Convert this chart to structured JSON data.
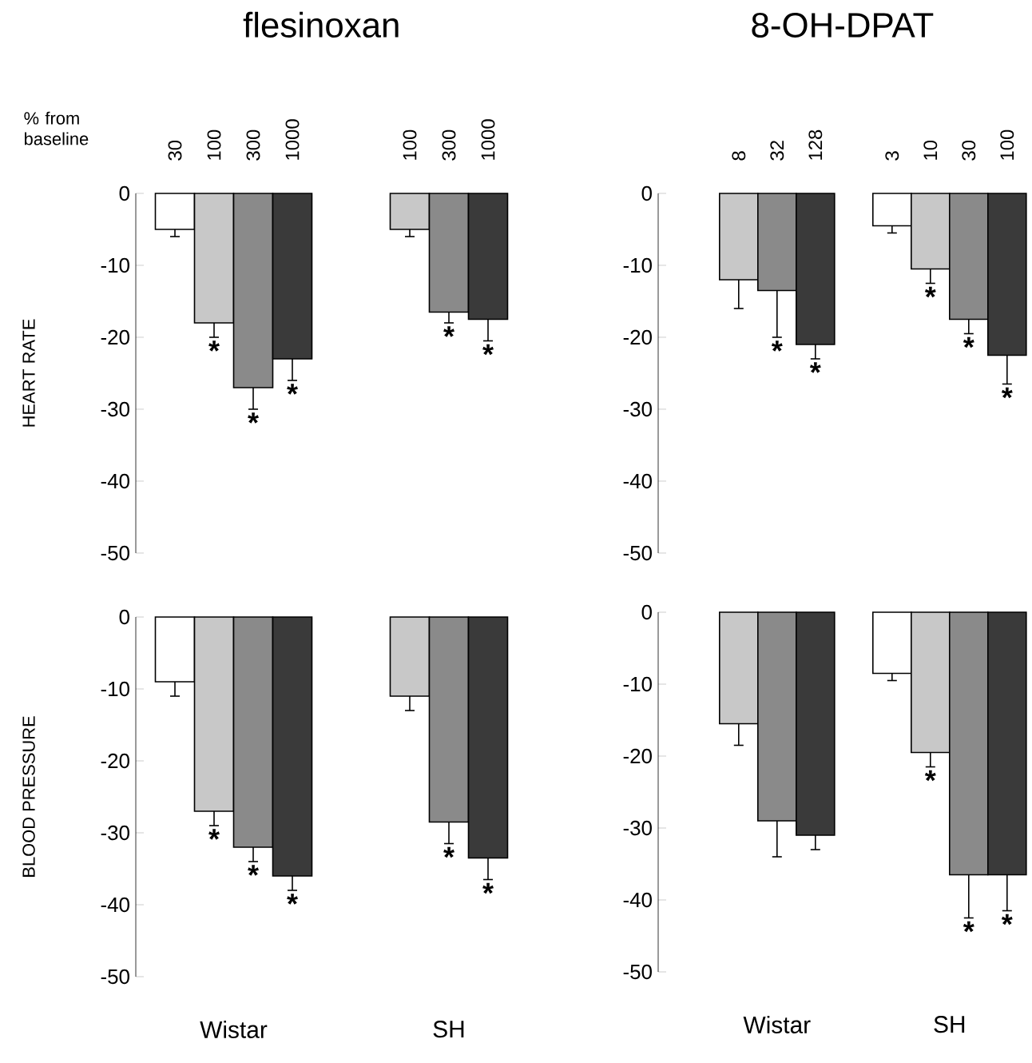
{
  "chart_data": [
    {
      "type": "bar",
      "title": "flesinoxan",
      "ylabel": "HEART RATE",
      "annotations": [
        "% from baseline"
      ],
      "categories": [
        "30",
        "100",
        "300",
        "1000",
        null,
        null,
        "100",
        "300",
        "1000"
      ],
      "values": [
        -5,
        -18,
        -27,
        -23,
        null,
        null,
        -5,
        -16.5,
        -17.5
      ],
      "errors": [
        [
          -6,
          -5
        ],
        [
          -20,
          -18
        ],
        [
          -30,
          -27
        ],
        [
          -26,
          -23
        ],
        null,
        null,
        [
          -6,
          -5
        ],
        [
          -18,
          -16.5
        ],
        [
          -20.5,
          -17.5
        ]
      ],
      "value_labels": [
        null,
        "*",
        "*",
        "*",
        null,
        null,
        null,
        "*",
        "*"
      ],
      "colors": [
        "#ffffff",
        "#c8c8c8",
        "#8a8a8a",
        "#3a3a3a",
        null,
        null,
        "#c8c8c8",
        "#8a8a8a",
        "#3a3a3a"
      ],
      "ylim": [
        -50,
        0
      ],
      "yticks": [
        0,
        -10,
        -20,
        -30,
        -40,
        -50
      ]
    },
    {
      "type": "bar",
      "title": "8-OH-DPAT",
      "categories": [
        "8",
        "32",
        "128",
        null,
        "3",
        "10",
        "30",
        "100"
      ],
      "values": [
        -12,
        -13.5,
        -21,
        null,
        -4.5,
        -10.5,
        -17.5,
        -22.5
      ],
      "errors": [
        [
          -16,
          -12
        ],
        [
          -20,
          -13.5
        ],
        [
          -23,
          -21
        ],
        null,
        [
          -5.5,
          -4.5
        ],
        [
          -12.5,
          -10.5
        ],
        [
          -19.5,
          -17.5
        ],
        [
          -26.5,
          -22.5
        ]
      ],
      "value_labels": [
        null,
        "*",
        "*",
        null,
        null,
        "*",
        "*",
        "*"
      ],
      "colors": [
        "#c8c8c8",
        "#8a8a8a",
        "#3a3a3a",
        null,
        "#ffffff",
        "#c8c8c8",
        "#8a8a8a",
        "#3a3a3a"
      ],
      "ylim": [
        -50,
        0
      ],
      "yticks": [
        0,
        -10,
        -20,
        -30,
        -40,
        -50
      ]
    },
    {
      "type": "bar",
      "ylabel": "BLOOD PRESSURE",
      "annotations": [
        "Wistar",
        "SH"
      ],
      "tick_labels": "y",
      "categories": [
        "30",
        "100",
        "300",
        "1000",
        null,
        null,
        "100",
        "300",
        "1000"
      ],
      "values": [
        -9,
        -27,
        -32,
        -36,
        null,
        null,
        -11,
        -28.5,
        -33.5
      ],
      "errors": [
        [
          -11,
          -9
        ],
        [
          -29,
          -27
        ],
        [
          -34,
          -32
        ],
        [
          -38,
          -36
        ],
        null,
        null,
        [
          -13,
          -11
        ],
        [
          -31.5,
          -28.5
        ],
        [
          -36.5,
          -33.5
        ]
      ],
      "value_labels": [
        null,
        "*",
        "*",
        "*",
        null,
        null,
        null,
        "*",
        "*"
      ],
      "colors": [
        "#ffffff",
        "#c8c8c8",
        "#8a8a8a",
        "#3a3a3a",
        null,
        null,
        "#c8c8c8",
        "#8a8a8a",
        "#3a3a3a"
      ],
      "ylim": [
        -50,
        0
      ],
      "yticks": [
        0,
        -10,
        -20,
        -30,
        -40,
        -50
      ]
    },
    {
      "type": "bar",
      "annotations": [
        "Wistar",
        "SH"
      ],
      "tick_labels": "y",
      "categories": [
        "8",
        "32",
        "128",
        null,
        "3",
        "10",
        "30",
        "100"
      ],
      "values": [
        -15.5,
        -29,
        -31,
        null,
        -8.5,
        -19.5,
        -36.5,
        -36.5
      ],
      "errors": [
        [
          -18.5,
          -15.5
        ],
        [
          -34,
          -29
        ],
        [
          -33,
          -31
        ],
        null,
        [
          -9.5,
          -8.5
        ],
        [
          -21.5,
          -19.5
        ],
        [
          -42.5,
          -36.5
        ],
        [
          -41.5,
          -36.5
        ]
      ],
      "value_labels": [
        null,
        null,
        null,
        null,
        null,
        "*",
        "*",
        "*"
      ],
      "colors": [
        "#c8c8c8",
        "#8a8a8a",
        "#3a3a3a",
        null,
        "#ffffff",
        "#c8c8c8",
        "#8a8a8a",
        "#3a3a3a"
      ],
      "ylim": [
        -50,
        0
      ],
      "yticks": [
        0,
        -10,
        -20,
        -30,
        -40,
        -50
      ]
    }
  ]
}
